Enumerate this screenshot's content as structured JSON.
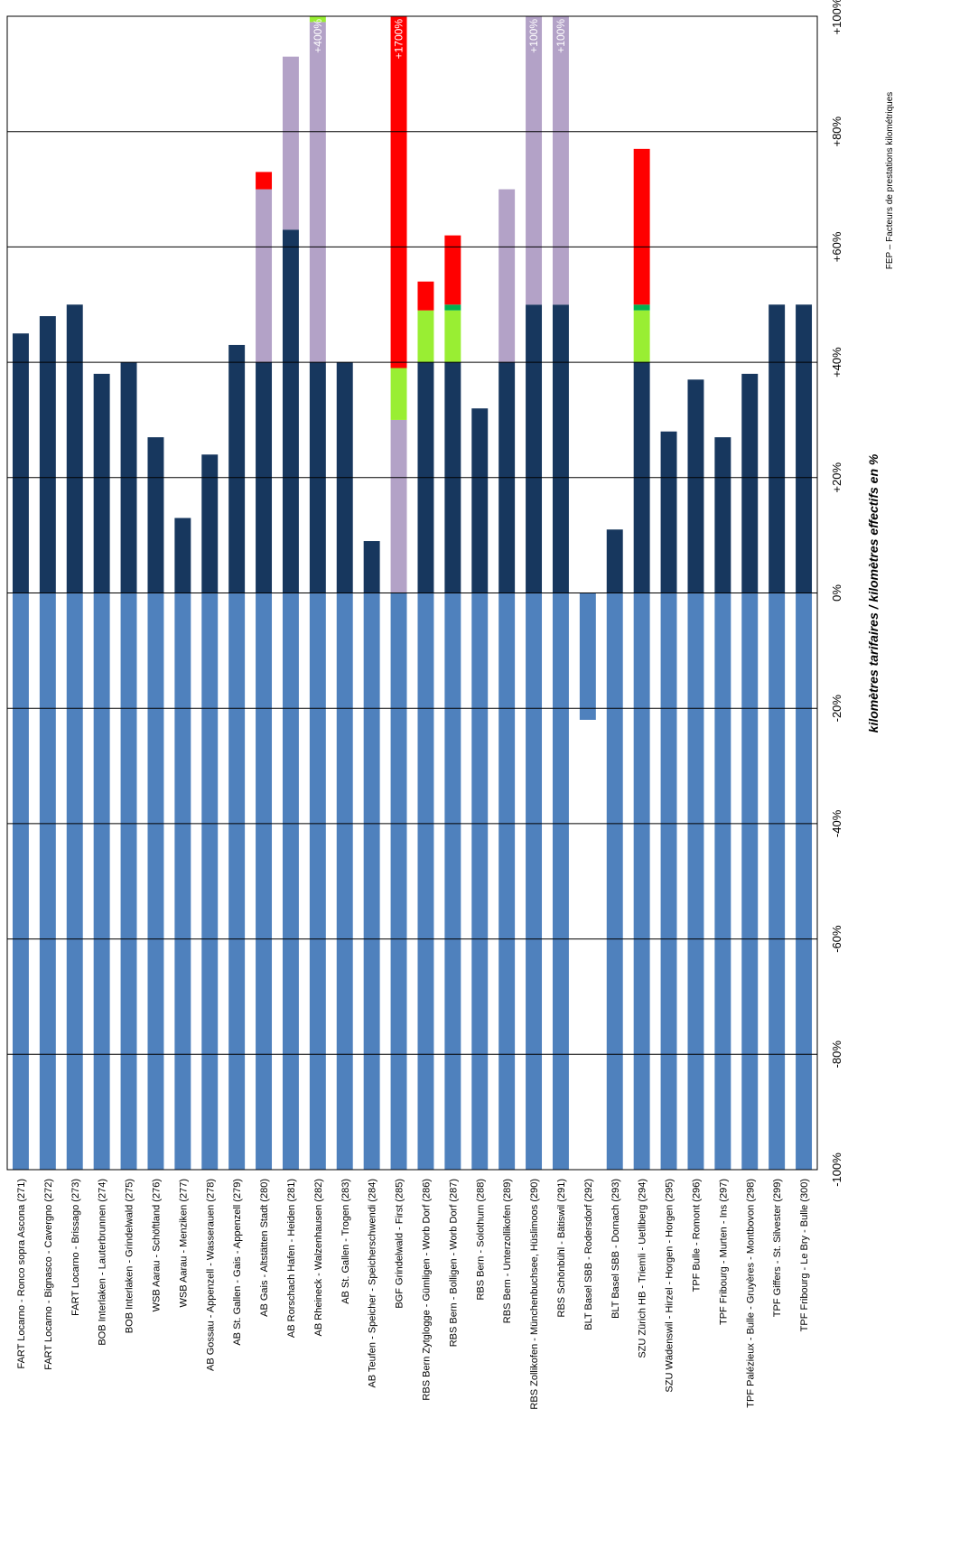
{
  "chart_data": {
    "type": "stacked_bar",
    "categories": [
      "FART Locarno - Ronco sopra Ascona (271)",
      "FART Locarno - Bignasco - Cavergno (272)",
      "FART Locarno - Brissago (273)",
      "BOB Interlaken - Lauterbrunnen (274)",
      "BOB Interlaken - Grindelwald (275)",
      "WSB Aarau - Schöftland (276)",
      "WSB Aarau - Menziken (277)",
      "AB Gossau - Appenzell - Wasserauen (278)",
      "AB St. Gallen - Gais - Appenzell (279)",
      "AB Gais - Altstätten Stadt (280)",
      "AB Rorschach Hafen - Heiden (281)",
      "AB Rheineck - Walzenhausen (282)",
      "AB St. Gallen - Trogen (283)",
      "AB Teufen - Speicher - Speicherschwendi (284)",
      "BGF Grindelwald - First (285)",
      "RBS Bern Zytglogge - Gümligen - Worb Dorf (286)",
      "RBS Bern - Bolligen - Worb Dorf (287)",
      "RBS Bern - Solothurn (288)",
      "RBS Bern - Unterzollikofen (289)",
      "RBS Zollikofen - Münchenbuchsee, Hüslimoos (290)",
      "RBS Schönbühl - Bätiswil (291)",
      "BLT Basel SBB - Rodersdorf (292)",
      "BLT Basel SBB - Dornach (293)",
      "SZU Zürich HB - Triemli - Uetliberg (294)",
      "SZU Wädenswil - Hirzel - Horgen - Horgen (295)",
      "TPF Bulle - Romont (296)",
      "TPF Fribourg - Murten - Ins (297)",
      "TPF Palézieux - Bulle - Gruyères - Montbovon (298)",
      "TPF Giffers - St. Silvester (299)",
      "TPF Fribourg - Le Bry - Bulle (300)"
    ],
    "series": [
      {
        "color": "#4f81bd",
        "values": [
          -100,
          -100,
          -100,
          -100,
          -100,
          -100,
          -100,
          -100,
          -100,
          -100,
          -100,
          -100,
          -100,
          -100,
          -100,
          -100,
          -100,
          -100,
          -100,
          -100,
          -100,
          -22,
          -100,
          -100,
          -100,
          -100,
          -100,
          -100,
          -100,
          -100
        ]
      },
      {
        "color": "#17375e",
        "values": [
          45,
          48,
          50,
          38,
          40,
          27,
          13,
          24,
          43,
          40,
          63,
          40,
          40,
          9,
          null,
          40,
          40,
          32,
          40,
          50,
          50,
          null,
          11,
          40,
          28,
          37,
          27,
          38,
          50,
          50
        ]
      },
      {
        "color": "#b3a2c7",
        "values": [
          null,
          null,
          null,
          null,
          null,
          null,
          null,
          null,
          null,
          30,
          30,
          59,
          null,
          null,
          30,
          null,
          null,
          null,
          30,
          50,
          50,
          null,
          null,
          null,
          null,
          null,
          null,
          null,
          null,
          null
        ]
      },
      {
        "color": "#99ee33",
        "values": [
          null,
          null,
          null,
          null,
          null,
          null,
          null,
          null,
          null,
          null,
          null,
          1,
          null,
          null,
          9,
          9,
          9,
          null,
          null,
          null,
          null,
          null,
          null,
          9,
          null,
          null,
          null,
          null,
          null,
          null
        ]
      },
      {
        "color": "#00b050",
        "values": [
          null,
          null,
          null,
          null,
          null,
          null,
          null,
          null,
          null,
          null,
          null,
          null,
          null,
          null,
          null,
          null,
          1,
          null,
          null,
          null,
          null,
          null,
          null,
          1,
          null,
          null,
          null,
          null,
          null,
          null
        ]
      },
      {
        "color": "#ff0000",
        "values": [
          null,
          null,
          null,
          null,
          null,
          null,
          null,
          null,
          null,
          3,
          null,
          null,
          null,
          null,
          61,
          5,
          12,
          null,
          null,
          null,
          null,
          null,
          null,
          27,
          null,
          null,
          null,
          null,
          null,
          null
        ]
      }
    ],
    "ylim": [
      -100,
      100
    ],
    "yticks": [
      {
        "value": -100,
        "label": "-100%"
      },
      {
        "value": -80,
        "label": "-80%"
      },
      {
        "value": -60,
        "label": "-60%"
      },
      {
        "value": -40,
        "label": "-40%"
      },
      {
        "value": -20,
        "label": "-20%"
      },
      {
        "value": 0,
        "label": "0%"
      },
      {
        "value": 20,
        "label": "+20%"
      },
      {
        "value": 40,
        "label": "+40%"
      },
      {
        "value": 60,
        "label": "+60%"
      },
      {
        "value": 80,
        "label": "+80%"
      },
      {
        "value": 100,
        "label": "+100%"
      }
    ],
    "grid": true,
    "annotations": [
      {
        "category": "AB Rheineck - Walzenhausen (282)",
        "text": "+400%"
      },
      {
        "category": "BGF Grindelwald - First (285)",
        "text": "+1700%"
      },
      {
        "category": "RBS Zollikofen - Münchenbuchsee, Hüslimoos (290)",
        "text": "+100%"
      },
      {
        "category": "RBS Schönbühl - Bätiswil (291)",
        "text": "+100%"
      }
    ],
    "y_label": "kilomètres tarifaires / kilomètres effectifs en %",
    "footnote": "FEP – Facteurs de prestations kilométriques"
  }
}
